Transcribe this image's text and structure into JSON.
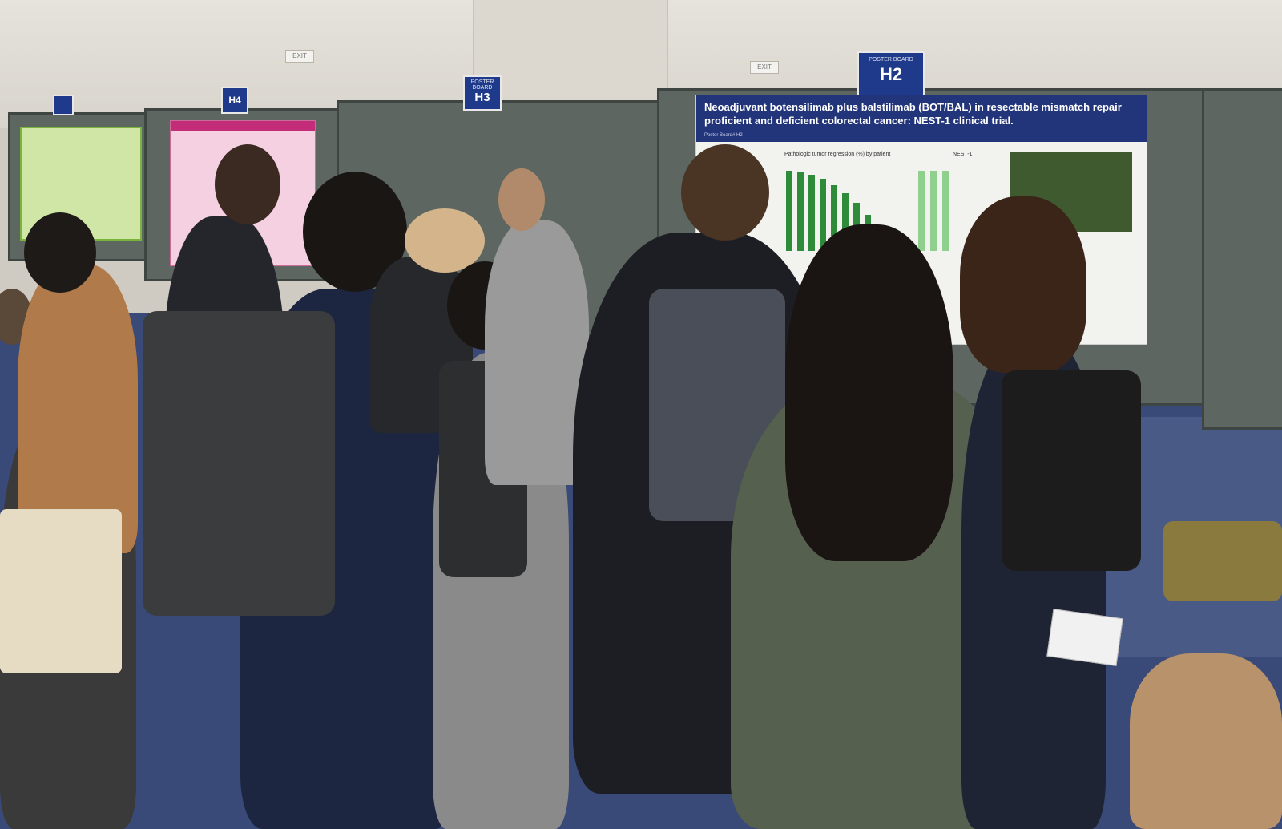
{
  "signs": {
    "h4": "H4",
    "h3": "H3",
    "h2": "H2",
    "h2_small": "POSTER BOARD",
    "exit": "EXIT"
  },
  "poster": {
    "title": "Neoadjuvant botensilimab plus balstilimab (BOT/BAL) in resectable mismatch repair proficient and deficient colorectal cancer: NEST-1 clinical trial.",
    "board_label": "Poster Board# H2",
    "chart_title": "Pathologic tumor regression (%) by patient",
    "section_label": "NEST-1"
  },
  "colors": {
    "carpet": "#3a4a78",
    "sign_blue": "#1f3a8a",
    "poster_header": "#22357a",
    "bar_green": "#2e8b3a"
  }
}
